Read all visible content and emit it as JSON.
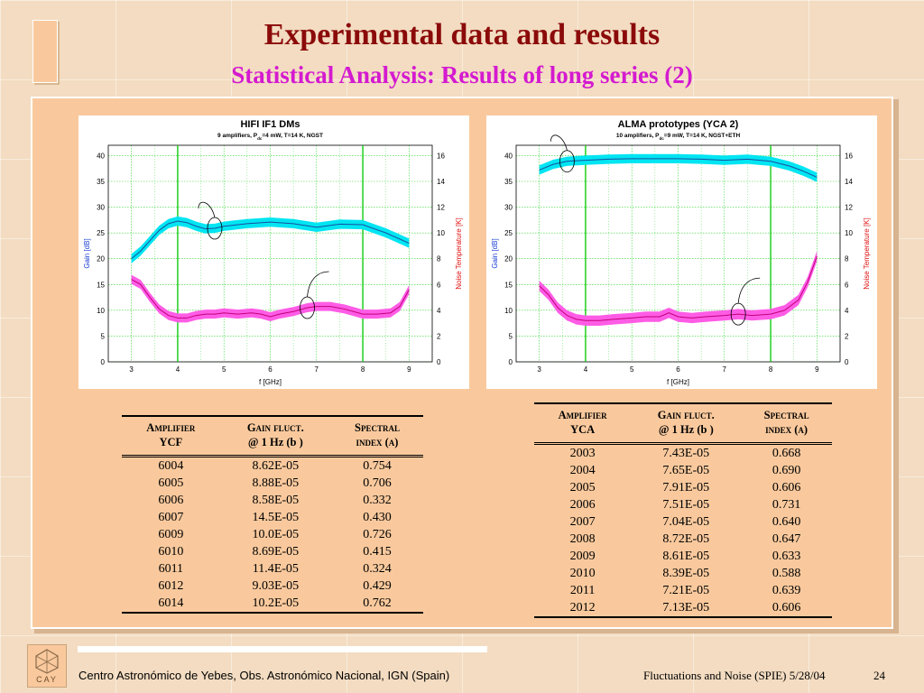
{
  "slide": {
    "title": "Experimental data and results",
    "subtitle": "Statistical Analysis: Results of long series (2)"
  },
  "footer": {
    "left": "Centro Astronómico de Yebes, Obs. Astronómico Nacional, IGN (Spain)",
    "right": "Fluctuations and Noise (SPIE)  5/28/04",
    "page": "24",
    "logo_text": "CAY"
  },
  "colors": {
    "title": "#8b0a0a",
    "subtitle": "#d41ad0",
    "gain_band": "#00e5f2",
    "gain_line": "#1a4fa0",
    "noise_band": "#ff5ce6",
    "noise_line": "#c0007a",
    "marker_line": "#00c800",
    "grid": "#2fd52f"
  },
  "chart_data": [
    {
      "type": "line",
      "title": "HIFI IF1 DMs",
      "subtitle_parts": [
        "9 amplifiers, P",
        "dc",
        "=4 mW, T=14 K, NGST"
      ],
      "xlabel": "f [GHz]",
      "ylabel": "Gain [dB]",
      "y2label": "Noise Temperature [K]",
      "xlim": [
        2.5,
        9.5
      ],
      "ylim": [
        0,
        42
      ],
      "y2lim": [
        0,
        16.8
      ],
      "xticks": [
        "3",
        "4",
        "5",
        "6",
        "7",
        "8",
        "9"
      ],
      "yticks": [
        "0",
        "5",
        "10",
        "15",
        "20",
        "25",
        "30",
        "35",
        "40"
      ],
      "y2ticks": [
        "0",
        "2",
        "4",
        "6",
        "8",
        "10",
        "12",
        "14",
        "16"
      ],
      "vlines": [
        4,
        8
      ],
      "series": [
        {
          "axis": "left",
          "band": 0.9,
          "x": [
            3.0,
            3.2,
            3.4,
            3.6,
            3.8,
            4.0,
            4.2,
            4.4,
            4.6,
            4.8,
            5.0,
            5.5,
            6.0,
            6.5,
            7.0,
            7.5,
            8.0,
            8.5,
            9.0
          ],
          "values": [
            20.0,
            21.5,
            23.5,
            25.5,
            26.8,
            27.3,
            27.0,
            26.3,
            25.8,
            25.9,
            26.3,
            26.8,
            27.1,
            26.8,
            26.1,
            26.7,
            26.6,
            25.0,
            23.0
          ]
        },
        {
          "axis": "right",
          "band": 0.35,
          "x": [
            3.0,
            3.2,
            3.4,
            3.6,
            3.8,
            4.0,
            4.2,
            4.4,
            4.6,
            4.8,
            5.0,
            5.3,
            5.6,
            5.8,
            6.0,
            6.2,
            6.5,
            6.8,
            7.0,
            7.3,
            7.6,
            8.0,
            8.3,
            8.6,
            8.8,
            9.0
          ],
          "values": [
            6.4,
            6.0,
            5.0,
            4.1,
            3.6,
            3.4,
            3.4,
            3.6,
            3.7,
            3.7,
            3.8,
            3.7,
            3.8,
            3.7,
            3.5,
            3.7,
            3.9,
            4.2,
            4.3,
            4.3,
            4.1,
            3.7,
            3.7,
            3.8,
            4.3,
            5.6
          ]
        }
      ]
    },
    {
      "type": "line",
      "title": "ALMA prototypes (YCA 2)",
      "subtitle_parts": [
        "10 amplifiers, P",
        "dc",
        "=9 mW, T=14 K, NGST+ETH"
      ],
      "xlabel": "f [GHz]",
      "ylabel": "Gain [dB]",
      "y2label": "Noise Temperature [K]",
      "xlim": [
        2.5,
        9.5
      ],
      "ylim": [
        0,
        42
      ],
      "y2lim": [
        0,
        16.8
      ],
      "xticks": [
        "3",
        "4",
        "5",
        "6",
        "7",
        "8",
        "9"
      ],
      "yticks": [
        "0",
        "5",
        "10",
        "15",
        "20",
        "25",
        "30",
        "35",
        "40"
      ],
      "y2ticks": [
        "0",
        "2",
        "4",
        "6",
        "8",
        "10",
        "12",
        "14",
        "16"
      ],
      "vlines": [
        4,
        8
      ],
      "series": [
        {
          "axis": "left",
          "band": 0.9,
          "x": [
            3.0,
            3.3,
            3.6,
            4.0,
            4.5,
            5.0,
            5.5,
            6.0,
            6.5,
            7.0,
            7.5,
            8.0,
            8.4,
            8.7,
            9.0
          ],
          "values": [
            37.2,
            38.3,
            38.9,
            39.1,
            39.3,
            39.4,
            39.4,
            39.4,
            39.3,
            39.1,
            39.3,
            38.9,
            38.0,
            37.0,
            35.8
          ]
        },
        {
          "axis": "right",
          "band": 0.4,
          "x": [
            3.0,
            3.2,
            3.4,
            3.6,
            3.8,
            4.0,
            4.3,
            4.6,
            5.0,
            5.3,
            5.6,
            5.8,
            6.0,
            6.3,
            6.6,
            7.0,
            7.3,
            7.6,
            8.0,
            8.3,
            8.6,
            8.8,
            9.0
          ],
          "values": [
            5.9,
            5.2,
            4.2,
            3.6,
            3.3,
            3.2,
            3.2,
            3.3,
            3.4,
            3.5,
            3.5,
            3.8,
            3.5,
            3.4,
            3.5,
            3.6,
            3.7,
            3.6,
            3.7,
            4.0,
            4.8,
            6.2,
            8.2
          ]
        }
      ]
    }
  ],
  "table_ycf": {
    "headers": [
      [
        "Amplifier",
        "YCF"
      ],
      [
        "Gain fluct.",
        "@ 1 Hz (b )"
      ],
      [
        "Spectral",
        "index (α)"
      ]
    ],
    "rows": [
      [
        "6004",
        "8.62E-05",
        "0.754"
      ],
      [
        "6005",
        "8.88E-05",
        "0.706"
      ],
      [
        "6006",
        "8.58E-05",
        "0.332"
      ],
      [
        "6007",
        "14.5E-05",
        "0.430"
      ],
      [
        "6009",
        "10.0E-05",
        "0.726"
      ],
      [
        "6010",
        "8.69E-05",
        "0.415"
      ],
      [
        "6011",
        "11.4E-05",
        "0.324"
      ],
      [
        "6012",
        "9.03E-05",
        "0.429"
      ],
      [
        "6014",
        "10.2E-05",
        "0.762"
      ]
    ]
  },
  "table_yca": {
    "headers": [
      [
        "Amplifier",
        "YCA"
      ],
      [
        "Gain fluct.",
        "@ 1 Hz (b )"
      ],
      [
        "Spectral",
        "index (α)"
      ]
    ],
    "rows": [
      [
        "2003",
        "7.43E-05",
        "0.668"
      ],
      [
        "2004",
        "7.65E-05",
        "0.690"
      ],
      [
        "2005",
        "7.91E-05",
        "0.606"
      ],
      [
        "2006",
        "7.51E-05",
        "0.731"
      ],
      [
        "2007",
        "7.04E-05",
        "0.640"
      ],
      [
        "2008",
        "8.72E-05",
        "0.647"
      ],
      [
        "2009",
        "8.61E-05",
        "0.633"
      ],
      [
        "2010",
        "8.39E-05",
        "0.588"
      ],
      [
        "2011",
        "7.21E-05",
        "0.639"
      ],
      [
        "2012",
        "7.13E-05",
        "0.606"
      ]
    ]
  }
}
